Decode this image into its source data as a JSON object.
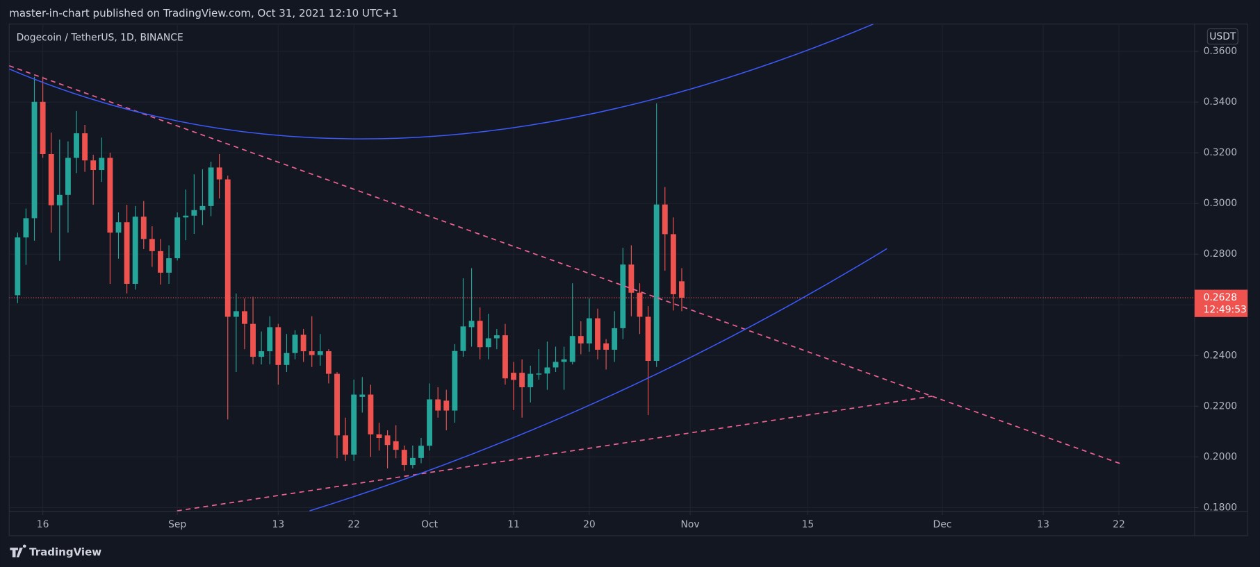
{
  "page": {
    "publisher_line": "master-in-chart published on TradingView.com, Oct 31, 2021 12:10 UTC+1",
    "brand": "TradingView"
  },
  "chart_data": {
    "type": "candlestick",
    "title": "Dogecoin / TetherUS, 1D, BINANCE",
    "currency": "USDT",
    "countdown": "12:49:53",
    "up_color": "#26a69a",
    "down_color": "#ef5350",
    "grid": true,
    "x": [
      "Aug 13",
      "Aug 14",
      "Aug 15",
      "Aug 16",
      "Aug 17",
      "Aug 18",
      "Aug 19",
      "Aug 20",
      "Aug 21",
      "Aug 22",
      "Aug 23",
      "Aug 24",
      "Aug 25",
      "Aug 26",
      "Aug 27",
      "Aug 28",
      "Aug 29",
      "Aug 30",
      "Aug 31",
      "Sep 1",
      "Sep 2",
      "Sep 3",
      "Sep 4",
      "Sep 5",
      "Sep 6",
      "Sep 7",
      "Sep 8",
      "Sep 9",
      "Sep 10",
      "Sep 11",
      "Sep 12",
      "Sep 13",
      "Sep 14",
      "Sep 15",
      "Sep 16",
      "Sep 17",
      "Sep 18",
      "Sep 19",
      "Sep 20",
      "Sep 21",
      "Sep 22",
      "Sep 23",
      "Sep 24",
      "Sep 25",
      "Sep 26",
      "Sep 27",
      "Sep 28",
      "Sep 29",
      "Sep 30",
      "Oct 1",
      "Oct 2",
      "Oct 3",
      "Oct 4",
      "Oct 5",
      "Oct 6",
      "Oct 7",
      "Oct 8",
      "Oct 9",
      "Oct 10",
      "Oct 11",
      "Oct 12",
      "Oct 13",
      "Oct 14",
      "Oct 15",
      "Oct 16",
      "Oct 17",
      "Oct 18",
      "Oct 19",
      "Oct 20",
      "Oct 21",
      "Oct 22",
      "Oct 23",
      "Oct 24",
      "Oct 25",
      "Oct 26",
      "Oct 27",
      "Oct 28",
      "Oct 29",
      "Oct 30",
      "Oct 31"
    ],
    "open": [
      0.2638,
      0.2866,
      0.2942,
      0.3401,
      0.3195,
      0.2993,
      0.3034,
      0.318,
      0.3277,
      0.317,
      0.3132,
      0.318,
      0.2885,
      0.2926,
      0.2683,
      0.2948,
      0.286,
      0.2812,
      0.2727,
      0.2784,
      0.2945,
      0.2952,
      0.2974,
      0.299,
      0.3142,
      0.3095,
      0.2553,
      0.2575,
      0.2525,
      0.2395,
      0.2417,
      0.2512,
      0.2363,
      0.241,
      0.2482,
      0.2417,
      0.2402,
      0.2417,
      0.2328,
      0.2085,
      0.2009,
      0.2237,
      0.2246,
      0.2089,
      0.2085,
      0.2062,
      0.2028,
      0.1968,
      0.1996,
      0.2044,
      0.2227,
      0.2222,
      0.2183,
      0.2418,
      0.2512,
      0.2537,
      0.2433,
      0.2468,
      0.248,
      0.2332,
      0.2332,
      0.2275,
      0.2325,
      0.2329,
      0.2353,
      0.2375,
      0.2375,
      0.2477,
      0.2448,
      0.2547,
      0.2448,
      0.2423,
      0.2508,
      0.2759,
      0.2648,
      0.2553,
      0.2379,
      0.2996,
      0.2879,
      0.2693
    ],
    "high": [
      0.2885,
      0.298,
      0.35,
      0.35,
      0.328,
      0.3252,
      0.3245,
      0.3365,
      0.331,
      0.3192,
      0.326,
      0.32,
      0.2965,
      0.2995,
      0.299,
      0.301,
      0.291,
      0.286,
      0.2835,
      0.2965,
      0.3055,
      0.3115,
      0.3135,
      0.3165,
      0.3195,
      0.311,
      0.2645,
      0.2625,
      0.2632,
      0.2495,
      0.2555,
      0.2525,
      0.2485,
      0.25,
      0.2505,
      0.2555,
      0.2485,
      0.2425,
      0.2335,
      0.2155,
      0.2305,
      0.2315,
      0.2285,
      0.2135,
      0.2105,
      0.2125,
      0.2045,
      0.2045,
      0.2075,
      0.229,
      0.2275,
      0.2265,
      0.2445,
      0.2705,
      0.2745,
      0.259,
      0.2565,
      0.2505,
      0.2525,
      0.2375,
      0.2385,
      0.236,
      0.2425,
      0.2455,
      0.2435,
      0.2435,
      0.2685,
      0.2535,
      0.2625,
      0.2585,
      0.2465,
      0.2575,
      0.2825,
      0.2835,
      0.2685,
      0.2595,
      0.3395,
      0.3065,
      0.2945,
      0.2745
    ],
    "low": [
      0.2607,
      0.2758,
      0.2853,
      0.318,
      0.2885,
      0.2774,
      0.2885,
      0.312,
      0.3125,
      0.2995,
      0.3085,
      0.2683,
      0.2782,
      0.2645,
      0.266,
      0.282,
      0.275,
      0.268,
      0.2683,
      0.2775,
      0.2855,
      0.288,
      0.2915,
      0.295,
      0.302,
      0.2148,
      0.2335,
      0.2425,
      0.2365,
      0.2365,
      0.2365,
      0.2285,
      0.2335,
      0.2385,
      0.2375,
      0.2355,
      0.236,
      0.229,
      0.1995,
      0.1985,
      0.1985,
      0.2175,
      0.2,
      0.2025,
      0.1955,
      0.1995,
      0.1945,
      0.1955,
      0.1975,
      0.2025,
      0.2155,
      0.2105,
      0.2135,
      0.2395,
      0.2435,
      0.2385,
      0.2385,
      0.2425,
      0.2285,
      0.2185,
      0.2155,
      0.2215,
      0.2305,
      0.2265,
      0.2335,
      0.2265,
      0.2365,
      0.2405,
      0.2415,
      0.2385,
      0.2345,
      0.2375,
      0.2465,
      0.2555,
      0.2485,
      0.2165,
      0.2355,
      0.2735,
      0.2578,
      0.2575
    ],
    "close": [
      0.2866,
      0.2942,
      0.3401,
      0.3195,
      0.2993,
      0.3034,
      0.318,
      0.3277,
      0.317,
      0.3132,
      0.318,
      0.2885,
      0.2926,
      0.2683,
      0.2948,
      0.286,
      0.2812,
      0.2727,
      0.2784,
      0.2945,
      0.2952,
      0.2974,
      0.299,
      0.3142,
      0.3095,
      0.2553,
      0.2575,
      0.2525,
      0.2395,
      0.2417,
      0.2512,
      0.2363,
      0.241,
      0.2482,
      0.2417,
      0.2402,
      0.2417,
      0.2328,
      0.2085,
      0.2009,
      0.2246,
      0.2246,
      0.2089,
      0.2075,
      0.2047,
      0.2028,
      0.1968,
      0.1996,
      0.2044,
      0.2227,
      0.2183,
      0.2183,
      0.2418,
      0.2515,
      0.2537,
      0.2433,
      0.2468,
      0.248,
      0.231,
      0.2304,
      0.2275,
      0.2328,
      0.2329,
      0.2353,
      0.2375,
      0.2385,
      0.2477,
      0.2448,
      0.2547,
      0.2423,
      0.2423,
      0.2508,
      0.2759,
      0.2648,
      0.2553,
      0.2379,
      0.2996,
      0.2879,
      0.2642,
      0.2628
    ],
    "xlim": [
      "Aug 12",
      "Dec 31"
    ],
    "xticks": [
      {
        "value": "Aug 16",
        "label": "16"
      },
      {
        "value": "Sep 1",
        "label": "Sep"
      },
      {
        "value": "Sep 13",
        "label": "13"
      },
      {
        "value": "Sep 22",
        "label": "22"
      },
      {
        "value": "Oct 1",
        "label": "Oct"
      },
      {
        "value": "Oct 11",
        "label": "11"
      },
      {
        "value": "Oct 20",
        "label": "20"
      },
      {
        "value": "Nov 1",
        "label": "Nov"
      },
      {
        "value": "Nov 15",
        "label": "15"
      },
      {
        "value": "Dec 1",
        "label": "Dec"
      },
      {
        "value": "Dec 13",
        "label": "13"
      },
      {
        "value": "Dec 22",
        "label": "22"
      }
    ],
    "ylim": [
      0.1784,
      0.3708
    ],
    "yticks": [
      {
        "value": 0.18,
        "label": "0.1800"
      },
      {
        "value": 0.2,
        "label": "0.2000"
      },
      {
        "value": 0.22,
        "label": "0.2200"
      },
      {
        "value": 0.24,
        "label": "0.2400"
      },
      {
        "value": 0.26,
        "label": "0.2600"
      },
      {
        "value": 0.28,
        "label": "0.2800"
      },
      {
        "value": 0.3,
        "label": "0.3000"
      },
      {
        "value": 0.32,
        "label": "0.3200"
      },
      {
        "value": 0.34,
        "label": "0.3400"
      },
      {
        "value": 0.36,
        "label": "0.3600"
      }
    ]
  }
}
